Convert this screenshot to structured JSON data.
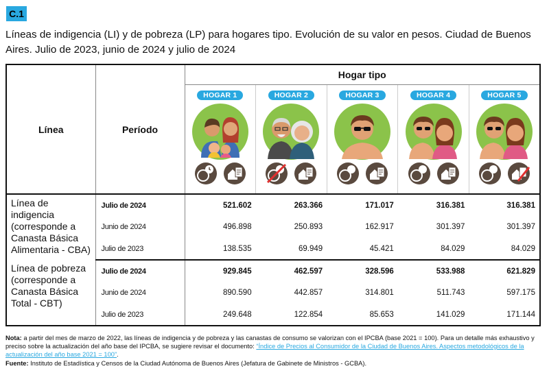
{
  "badge": "C.1",
  "title": "Líneas de indigencia (LI) y de pobreza (LP) para hogares tipo. Evolución de su valor en pesos. Ciudad de Buenos Aires. Julio de 2023, junio de 2024 y julio de 2024",
  "headers": {
    "line": "Línea",
    "period": "Período",
    "group": "Hogar tipo",
    "hogares": [
      "HOGAR 1",
      "HOGAR 2",
      "HOGAR 3",
      "HOGAR 4",
      "HOGAR 5"
    ]
  },
  "sections": [
    {
      "label": "Línea de indigencia (corresponde a Canasta Básica Alimentaria - CBA)",
      "rows": [
        {
          "period": "Julio de 2024",
          "values": [
            "521.602",
            "263.366",
            "171.017",
            "316.381",
            "316.381"
          ]
        },
        {
          "period": "Junio de 2024",
          "values": [
            "496.898",
            "250.893",
            "162.917",
            "301.397",
            "301.397"
          ]
        },
        {
          "period": "Julio de 2023",
          "values": [
            "138.535",
            "69.949",
            "45.421",
            "84.029",
            "84.029"
          ]
        }
      ]
    },
    {
      "label": "Línea de pobreza (corresponde a Canasta Básica Total - CBT)",
      "rows": [
        {
          "period": "Julio de 2024",
          "values": [
            "929.845",
            "462.597",
            "328.596",
            "533.988",
            "621.829"
          ]
        },
        {
          "period": "Junio de 2024",
          "values": [
            "890.590",
            "442.857",
            "314.801",
            "511.743",
            "597.175"
          ]
        },
        {
          "period": "Julio de 2023",
          "values": [
            "249.648",
            "122.854",
            "85.653",
            "141.029",
            "171.144"
          ]
        }
      ]
    }
  ],
  "note": {
    "label": "Nota:",
    "text": " a partir del mes de marzo de 2022, las líneas de indigencia y de pobreza y las canastas de consumo se valorizan con el IPCBA (base 2021 = 100). Para un detalle más exhaustivo y preciso sobre la actualización del año base del IPCBA, se sugiere revisar el documento: ",
    "link": "“Índice de Precios al Consumidor de la Ciudad de Buenos Aires. Aspectos metodológicos de la actualización del año base 2021 = 100”",
    "end": "."
  },
  "source": {
    "label": "Fuente:",
    "text": " Instituto de Estadística y Censos de la Ciudad Autónoma de Buenos Aires (Jefatura de Gabinete de Ministros - GCBA)."
  },
  "colors": {
    "accent": "#29a8e0",
    "face_bg": "#8bc34a",
    "icon_bg": "#5a4a3f"
  }
}
